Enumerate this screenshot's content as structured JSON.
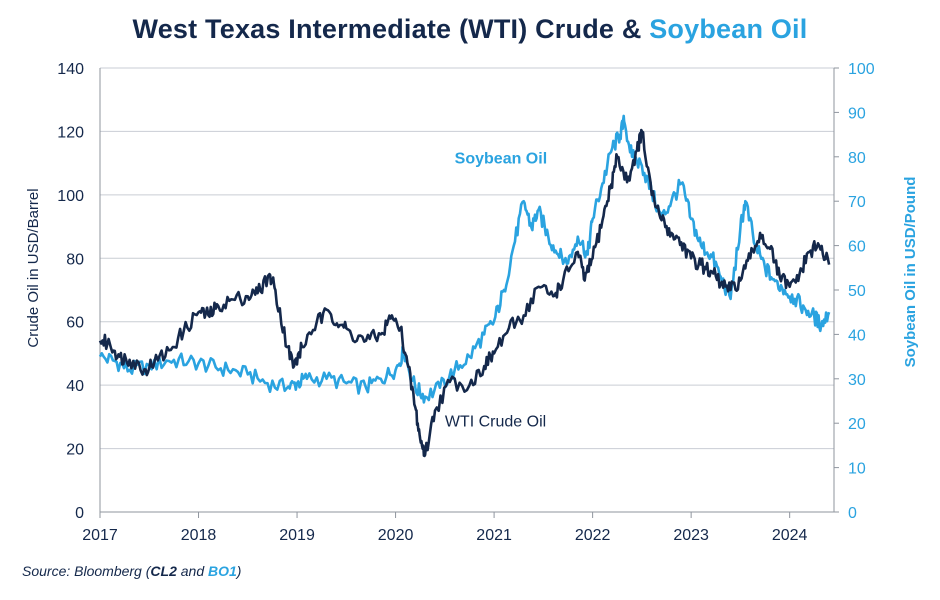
{
  "chart_data": {
    "type": "line",
    "title": {
      "part1": "West Texas Intermediate (WTI) Crude & ",
      "part2": "Soybean Oil"
    },
    "source": {
      "prefix": "Source: Bloomberg (",
      "code1": "CL2",
      "and": " and ",
      "code2": "BO1",
      "suffix": ")"
    },
    "xlabel": "",
    "x_ticks": [
      "2017",
      "2018",
      "2019",
      "2020",
      "2021",
      "2022",
      "2023",
      "2024"
    ],
    "xlim": [
      2017,
      2024.45
    ],
    "y_left": {
      "label": "Crude Oil in USD/Barrel",
      "ticks": [
        "0",
        "20",
        "40",
        "60",
        "80",
        "100",
        "120",
        "140"
      ],
      "ylim": [
        0,
        140
      ]
    },
    "y_right": {
      "label": "Soybean Oil in USD/Pound",
      "ticks": [
        "0",
        "10",
        "20",
        "30",
        "40",
        "50",
        "60",
        "70",
        "80",
        "90",
        "100"
      ],
      "ylim": [
        0,
        100
      ]
    },
    "grid": true,
    "colors": {
      "wti": "#14284b",
      "soy": "#2aa3e0",
      "grid": "#c9cdd4",
      "axis": "#8f959e"
    },
    "series": [
      {
        "name": "WTI Crude Oil",
        "axis": "left",
        "color": "#14284b",
        "x": [
          2017.0,
          2017.1,
          2017.2,
          2017.3,
          2017.45,
          2017.55,
          2017.7,
          2017.85,
          2018.0,
          2018.1,
          2018.2,
          2018.35,
          2018.5,
          2018.6,
          2018.72,
          2018.78,
          2018.9,
          2018.97,
          2019.05,
          2019.2,
          2019.33,
          2019.45,
          2019.55,
          2019.7,
          2019.85,
          2019.95,
          2020.05,
          2020.12,
          2020.2,
          2020.25,
          2020.3,
          2020.4,
          2020.55,
          2020.75,
          2020.9,
          2021.0,
          2021.15,
          2021.3,
          2021.45,
          2021.6,
          2021.7,
          2021.85,
          2021.92,
          2022.0,
          2022.1,
          2022.18,
          2022.25,
          2022.35,
          2022.45,
          2022.5,
          2022.6,
          2022.7,
          2022.8,
          2022.9,
          2023.0,
          2023.1,
          2023.2,
          2023.3,
          2023.4,
          2023.5,
          2023.6,
          2023.7,
          2023.8,
          2023.9,
          2024.0,
          2024.1,
          2024.2,
          2024.3,
          2024.4
        ],
        "y": [
          54,
          53,
          49,
          48,
          45,
          47,
          51,
          57,
          63,
          62,
          65,
          67,
          68,
          69,
          75,
          70,
          52,
          46,
          52,
          60,
          63,
          59,
          56,
          54,
          56,
          61,
          58,
          47,
          33,
          23,
          18,
          32,
          41,
          40,
          46,
          50,
          58,
          62,
          71,
          68,
          73,
          82,
          73,
          80,
          92,
          102,
          112,
          104,
          114,
          120,
          100,
          92,
          88,
          85,
          80,
          78,
          76,
          72,
          70,
          73,
          80,
          88,
          83,
          74,
          71,
          75,
          82,
          84,
          78
        ]
      },
      {
        "name": "Soybean Oil",
        "axis": "right",
        "color": "#2aa3e0",
        "x": [
          2017.0,
          2017.15,
          2017.3,
          2017.5,
          2017.7,
          2017.9,
          2018.1,
          2018.3,
          2018.5,
          2018.7,
          2018.9,
          2019.0,
          2019.1,
          2019.3,
          2019.5,
          2019.7,
          2019.85,
          2020.0,
          2020.08,
          2020.2,
          2020.3,
          2020.45,
          2020.6,
          2020.75,
          2020.9,
          2021.0,
          2021.1,
          2021.2,
          2021.3,
          2021.38,
          2021.45,
          2021.55,
          2021.65,
          2021.75,
          2021.85,
          2021.95,
          2022.0,
          2022.1,
          2022.2,
          2022.28,
          2022.32,
          2022.4,
          2022.5,
          2022.6,
          2022.7,
          2022.8,
          2022.9,
          2023.0,
          2023.1,
          2023.2,
          2023.3,
          2023.4,
          2023.5,
          2023.55,
          2023.65,
          2023.75,
          2023.85,
          2023.95,
          2024.05,
          2024.15,
          2024.25,
          2024.32,
          2024.4
        ],
        "y": [
          35,
          34,
          32,
          33,
          34,
          34,
          33,
          32,
          31,
          29,
          28,
          29,
          30,
          30,
          29,
          28,
          30,
          32,
          36,
          28,
          26,
          28,
          32,
          35,
          40,
          43,
          50,
          60,
          70,
          64,
          68,
          62,
          58,
          56,
          62,
          58,
          66,
          74,
          82,
          85,
          88,
          80,
          78,
          72,
          66,
          70,
          74,
          66,
          60,
          58,
          53,
          48,
          64,
          70,
          60,
          55,
          52,
          50,
          48,
          46,
          44,
          42,
          45
        ]
      }
    ],
    "annotations": [
      {
        "text": "Soybean Oil",
        "series": "Soybean Oil",
        "x": 2020.6,
        "y_right": 78.5
      },
      {
        "text": "WTI Crude Oil",
        "series": "WTI Crude Oil",
        "x": 2020.5,
        "y_left": 27
      }
    ]
  }
}
